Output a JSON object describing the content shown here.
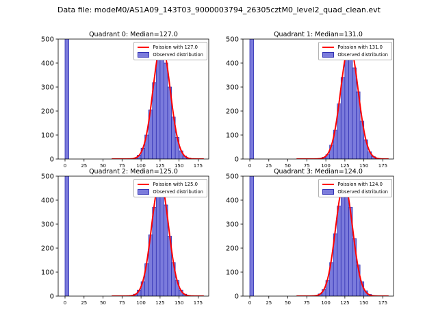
{
  "figure": {
    "title": "Data file: modeM0/AS1A09_143T03_9000003794_26305cztM0_level2_quad_clean.evt"
  },
  "chart_data": {
    "type": "bar",
    "subtype": "histogram_with_poisson_fit",
    "grid": false,
    "layout": "2x2",
    "xlim": [
      -9,
      189
    ],
    "ylim": [
      0,
      500
    ],
    "xticks": [
      0,
      25,
      50,
      75,
      100,
      125,
      150,
      175
    ],
    "yticks": [
      0,
      100,
      200,
      300,
      400,
      500
    ],
    "bin_width": 5,
    "legend_position": "upper right",
    "colors": {
      "bar_fill": "#7b7bdc",
      "bar_edge": "#3232b4",
      "curve": "#ff0000",
      "axis": "#000000"
    },
    "subplots": [
      {
        "title": "Quadrant 0: Median=127.0",
        "median": 127.0,
        "legend_fit": "Poission with 127.0",
        "legend_obs": "Observed distribution",
        "curve_peak": 480,
        "zero_bin": {
          "x": 0,
          "count": 500,
          "clipped": true
        },
        "hist_edges": [
          85,
          90,
          95,
          100,
          105,
          110,
          115,
          120,
          125,
          130,
          135,
          140,
          145,
          150,
          155,
          160,
          165
        ],
        "hist_counts": [
          1,
          4,
          16,
          45,
          100,
          205,
          318,
          430,
          455,
          400,
          300,
          175,
          90,
          34,
          12,
          4,
          1
        ]
      },
      {
        "title": "Quadrant 1: Median=131.0",
        "median": 131.0,
        "legend_fit": "Poission with 131.0",
        "legend_obs": "Observed distribution",
        "curve_peak": 475,
        "zero_bin": {
          "x": 0,
          "count": 500,
          "clipped": true
        },
        "hist_edges": [
          90,
          95,
          100,
          105,
          110,
          115,
          120,
          125,
          130,
          135,
          140,
          145,
          150,
          155,
          160,
          165
        ],
        "hist_counts": [
          2,
          7,
          18,
          58,
          120,
          230,
          340,
          440,
          448,
          380,
          280,
          158,
          80,
          30,
          10,
          3
        ]
      },
      {
        "title": "Quadrant 2: Median=125.0",
        "median": 125.0,
        "legend_fit": "Poission with 125.0",
        "legend_obs": "Observed distribution",
        "curve_peak": 480,
        "zero_bin": {
          "x": 0,
          "count": 500,
          "clipped": true
        },
        "hist_edges": [
          85,
          90,
          95,
          100,
          105,
          110,
          115,
          120,
          125,
          130,
          135,
          140,
          145,
          150,
          155,
          160
        ],
        "hist_counts": [
          2,
          8,
          25,
          60,
          135,
          255,
          370,
          465,
          450,
          380,
          250,
          140,
          65,
          25,
          8,
          2
        ]
      },
      {
        "title": "Quadrant 3: Median=124.0",
        "median": 124.0,
        "legend_fit": "Poission with 124.0",
        "legend_obs": "Observed distribution",
        "curve_peak": 470,
        "zero_bin": {
          "x": 0,
          "count": 500,
          "clipped": true
        },
        "hist_edges": [
          85,
          90,
          95,
          100,
          105,
          110,
          115,
          120,
          125,
          130,
          135,
          140,
          145,
          150,
          155,
          160
        ],
        "hist_counts": [
          2,
          9,
          27,
          65,
          140,
          260,
          375,
          460,
          445,
          370,
          240,
          130,
          60,
          22,
          7,
          2
        ]
      }
    ]
  }
}
